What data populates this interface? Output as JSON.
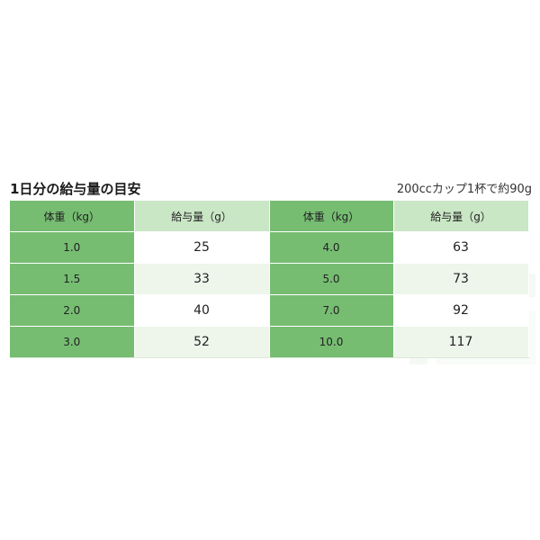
{
  "title": "1日分の給与量の目安",
  "note": "200ccカップ1杯で約90g",
  "table": {
    "headers": [
      "体重（kg）",
      "給与量（g）",
      "体重（kg）",
      "給与量（g）"
    ],
    "rows": [
      [
        "1.0",
        "25",
        "4.0",
        "63"
      ],
      [
        "1.5",
        "33",
        "5.0",
        "73"
      ],
      [
        "2.0",
        "40",
        "7.0",
        "92"
      ],
      [
        "3.0",
        "52",
        "10.0",
        "117"
      ]
    ]
  },
  "colors": {
    "weight_cell": "#76bd72",
    "amount_header": "#c9e6c5",
    "amount_row_alt": "#eef6ec"
  }
}
